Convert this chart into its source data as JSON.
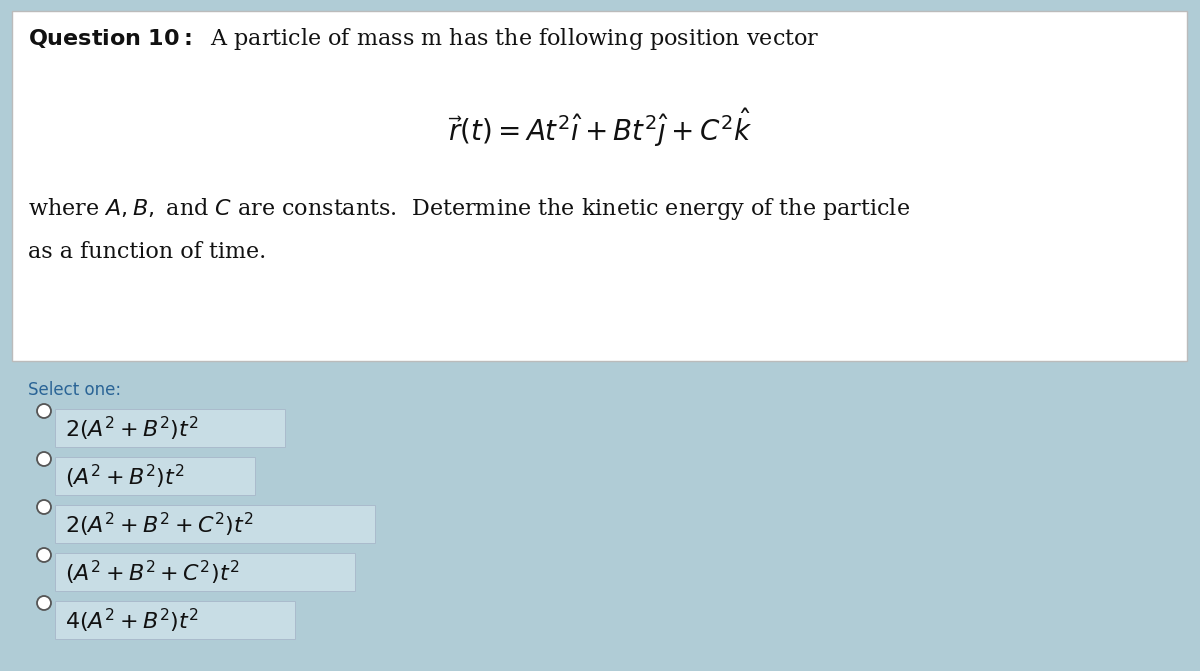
{
  "background_color": "#b0ccd6",
  "question_box_facecolor": "#ffffff",
  "option_box_facecolor": "#c8dde5",
  "select_color": "#2a6496",
  "text_color": "#111111",
  "title_fontsize": 16,
  "body_fontsize": 16,
  "eq_fontsize": 18,
  "option_fontsize": 16,
  "select_fontsize": 12,
  "options": [
    "$2(A^2 + B^2)t^2$",
    "$(A^2 + B^2)t^2$",
    "$2(A^2 + B^2 + C^2)t^2$",
    "$(A^2 + B^2 + C^2)t^2$",
    "$4(A^2 + B^2)t^2$"
  ]
}
